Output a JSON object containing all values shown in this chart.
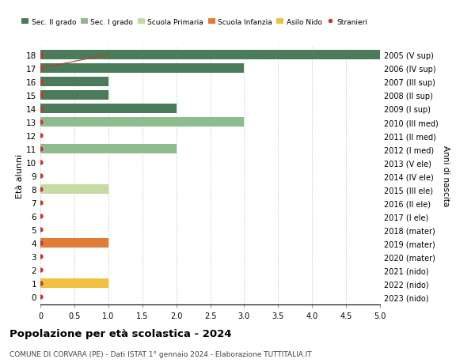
{
  "ages": [
    18,
    17,
    16,
    15,
    14,
    13,
    12,
    11,
    10,
    9,
    8,
    7,
    6,
    5,
    4,
    3,
    2,
    1,
    0
  ],
  "right_labels": [
    "2005 (V sup)",
    "2006 (IV sup)",
    "2007 (III sup)",
    "2008 (II sup)",
    "2009 (I sup)",
    "2010 (III med)",
    "2011 (II med)",
    "2012 (I med)",
    "2013 (V ele)",
    "2014 (IV ele)",
    "2015 (III ele)",
    "2016 (II ele)",
    "2017 (I ele)",
    "2018 (mater)",
    "2019 (mater)",
    "2020 (mater)",
    "2021 (nido)",
    "2022 (nido)",
    "2023 (nido)"
  ],
  "bar_values": [
    5.0,
    3.0,
    1.0,
    1.0,
    2.0,
    3.0,
    0.0,
    2.0,
    0.0,
    0.0,
    1.0,
    0.0,
    0.0,
    0.0,
    1.0,
    0.0,
    0.0,
    1.0,
    0.0
  ],
  "bar_colors": [
    "#4a7c59",
    "#4a7c59",
    "#4a7c59",
    "#4a7c59",
    "#4a7c59",
    "#8fbc8f",
    "#8fbc8f",
    "#8fbc8f",
    "#c5dba4",
    "#c5dba4",
    "#c5dba4",
    "#c5dba4",
    "#c5dba4",
    "#e07b39",
    "#e07b39",
    "#e07b39",
    "#f0c040",
    "#f0c040",
    "#f0c040"
  ],
  "legend_labels": [
    "Sec. II grado",
    "Sec. I grado",
    "Scuola Primaria",
    "Scuola Infanzia",
    "Asilo Nido",
    "Stranieri"
  ],
  "legend_colors": [
    "#4a7c59",
    "#8fbc8f",
    "#c5dba4",
    "#e07b39",
    "#f0c040",
    "#c0392b"
  ],
  "ylabel_left": "Età alunni",
  "ylabel_right": "Anni di nascita",
  "title": "Popolazione per età scolastica - 2024",
  "subtitle": "COMUNE DI CORVARA (PE) - Dati ISTAT 1° gennaio 2024 - Elaborazione TUTTITALIA.IT",
  "xlim": [
    0,
    5.0
  ],
  "xticks": [
    0,
    0.5,
    1.0,
    1.5,
    2.0,
    2.5,
    3.0,
    3.5,
    4.0,
    4.5,
    5.0
  ],
  "xtick_labels": [
    "0",
    "0.5",
    "1.0",
    "1.5",
    "2.0",
    "2.5",
    "3.0",
    "3.5",
    "4.0",
    "4.5",
    "5.0"
  ],
  "stranieri_color": "#c0392b",
  "stranieri_line_x": [
    0,
    1
  ],
  "stranieri_line_age": [
    17,
    18
  ],
  "grid_color": "#cccccc",
  "bg_color": "#ffffff",
  "bar_height": 0.7
}
